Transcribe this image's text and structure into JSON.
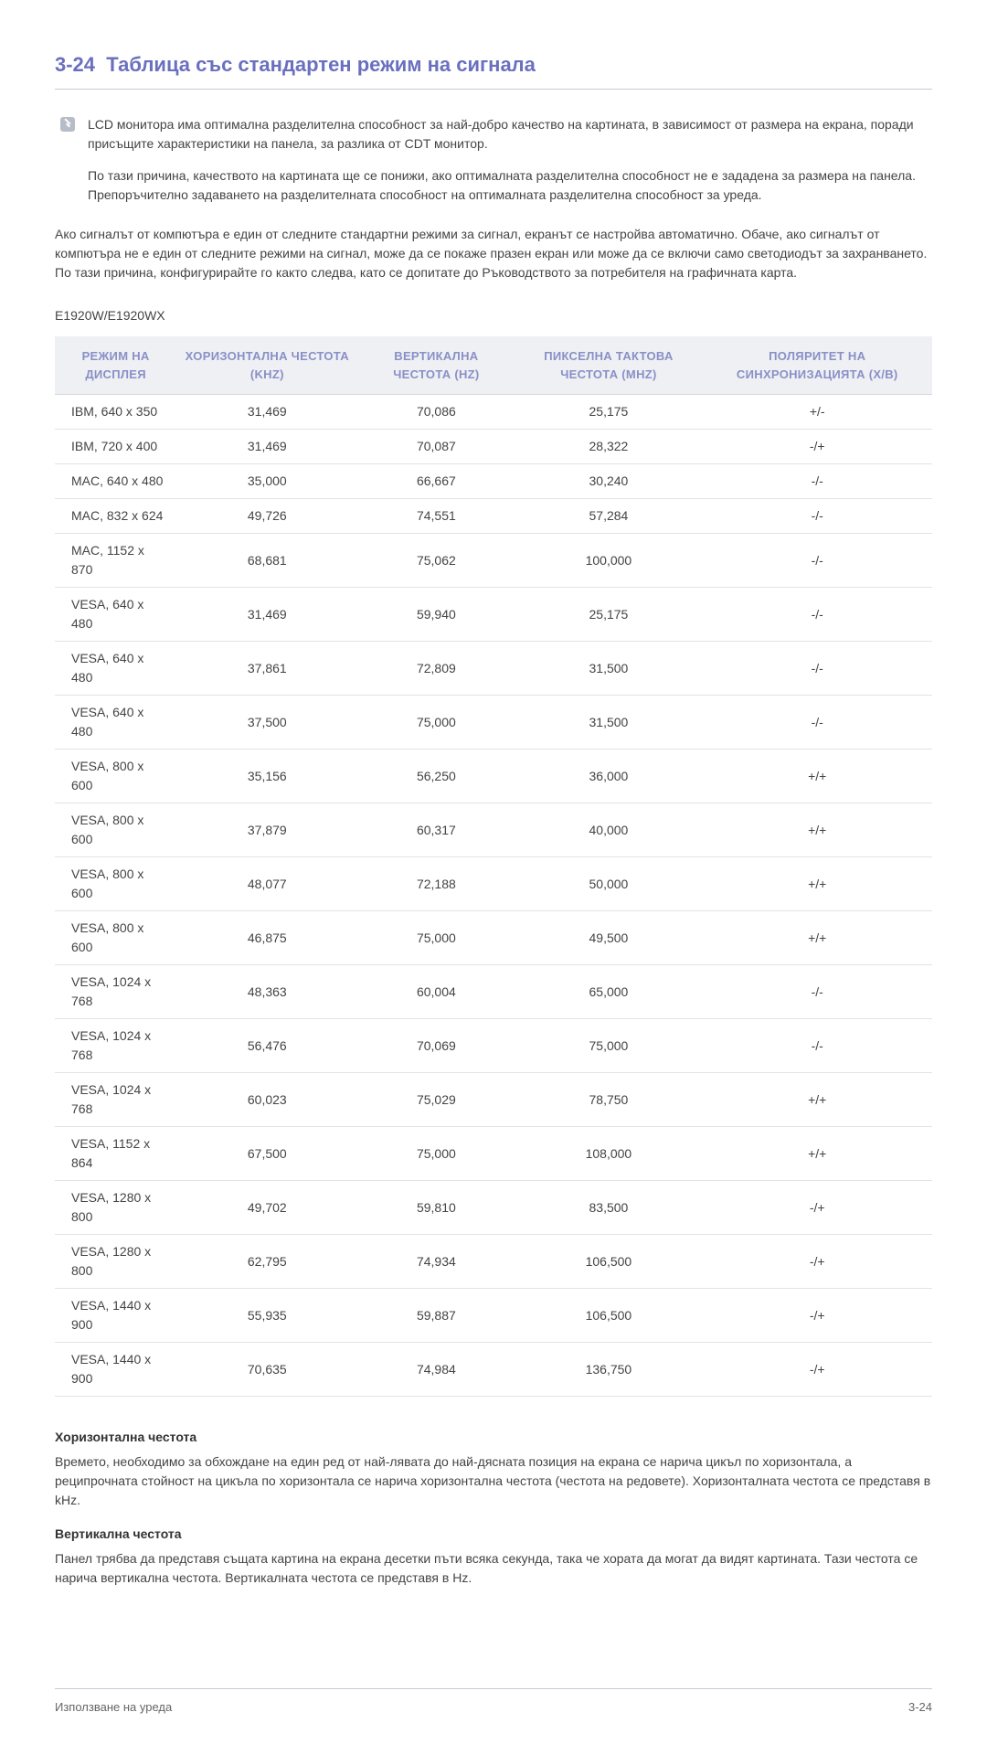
{
  "page": {
    "section_number": "3-24",
    "section_title": "Таблица със стандартен режим на сигнала",
    "title_color": "#6a6fbf",
    "border_color": "#c9c9d6",
    "background": "#ffffff"
  },
  "note": {
    "icon_name": "note-icon",
    "paragraphs": [
      "LCD монитора има оптимална разделителна способност за най-добро качество на картината, в зависимост от размера на екрана, поради присъщите характеристики на панела, за разлика от CDT монитор.",
      "По тази причина, качеството на картината ще се понижи, ако оптималната разделителна способност не е зададена за размера на панела. Препоръчително задаването на разделителната способност на оптималната разделителна способност за уреда."
    ]
  },
  "body_paragraph": "Ако сигналът от компютъра е един от следните стандартни режими за сигнал, екранът се настройва автоматично. Обаче, ако сигналът от компютъра не е един от следните режими на сигнал, може да се покаже празен екран или може да се включи само светодиодът за захранването. По тази причина, конфигурирайте го както следва, като се допитате до Ръководството за потребителя на графичната карта.",
  "model": "E1920W/E1920WX",
  "table": {
    "header_bg": "#eef0f3",
    "header_color": "#8a8fc7",
    "row_border": "#e2e3e8",
    "columns": [
      "РЕЖИМ НА ДИСПЛЕЯ",
      "ХОРИЗОНТАЛНА ЧЕСТОТА (KHZ)",
      "ВЕРТИКАЛНА ЧЕСТОТА (HZ)",
      "ПИКСЕЛНА ТАКТОВА ЧЕСТОТА (MHZ)",
      "ПОЛЯРИТЕТ НА СИНХРОНИЗАЦИЯТА (Х/В)"
    ],
    "rows": [
      [
        "IBM, 640 x 350",
        "31,469",
        "70,086",
        "25,175",
        "+/-"
      ],
      [
        "IBM, 720 x 400",
        "31,469",
        "70,087",
        "28,322",
        "-/+"
      ],
      [
        "MAC, 640 x 480",
        "35,000",
        "66,667",
        "30,240",
        "-/-"
      ],
      [
        "MAC, 832 x 624",
        "49,726",
        "74,551",
        "57,284",
        "-/-"
      ],
      [
        "MAC, 1152 x 870",
        "68,681",
        "75,062",
        "100,000",
        "-/-"
      ],
      [
        "VESA, 640 x 480",
        "31,469",
        "59,940",
        "25,175",
        "-/-"
      ],
      [
        "VESA, 640 x 480",
        "37,861",
        "72,809",
        "31,500",
        "-/-"
      ],
      [
        "VESA, 640 x 480",
        "37,500",
        "75,000",
        "31,500",
        "-/-"
      ],
      [
        "VESA, 800 x 600",
        "35,156",
        "56,250",
        "36,000",
        "+/+"
      ],
      [
        "VESA, 800 x 600",
        "37,879",
        "60,317",
        "40,000",
        "+/+"
      ],
      [
        "VESA, 800 x 600",
        "48,077",
        "72,188",
        "50,000",
        "+/+"
      ],
      [
        "VESA, 800 x 600",
        "46,875",
        "75,000",
        "49,500",
        "+/+"
      ],
      [
        "VESA, 1024 x 768",
        "48,363",
        "60,004",
        "65,000",
        "-/-"
      ],
      [
        "VESA, 1024 x 768",
        "56,476",
        "70,069",
        "75,000",
        "-/-"
      ],
      [
        "VESA, 1024 x 768",
        "60,023",
        "75,029",
        "78,750",
        "+/+"
      ],
      [
        "VESA, 1152 x 864",
        "67,500",
        "75,000",
        "108,000",
        "+/+"
      ],
      [
        "VESA, 1280 x 800",
        "49,702",
        "59,810",
        "83,500",
        "-/+"
      ],
      [
        "VESA, 1280 x 800",
        "62,795",
        "74,934",
        "106,500",
        "-/+"
      ],
      [
        "VESA, 1440 x 900",
        "55,935",
        "59,887",
        "106,500",
        "-/+"
      ],
      [
        "VESA, 1440 x 900",
        "70,635",
        "74,984",
        "136,750",
        "-/+"
      ]
    ]
  },
  "definitions": [
    {
      "title": "Хоризонтална честота",
      "body": "Времето, необходимо за обхождане на един ред от най-лявата до най-дясната позиция на екрана се нарича цикъл по хоризонтала, а реципрочната стойност на цикъла по хоризонтала се нарича хоризонтална честота (честота на редовете). Хоризонталната честота се представя в kHz."
    },
    {
      "title": "Вертикална честота",
      "body": "Панел трябва да представя същата картина на екрана десетки пъти всяка секунда, така че хората да могат да видят картината. Тази честота се нарича вертикална честота. Вертикалната честота се представя в Hz."
    }
  ],
  "footer": {
    "left": "Използване на уреда",
    "right": "3-24"
  }
}
